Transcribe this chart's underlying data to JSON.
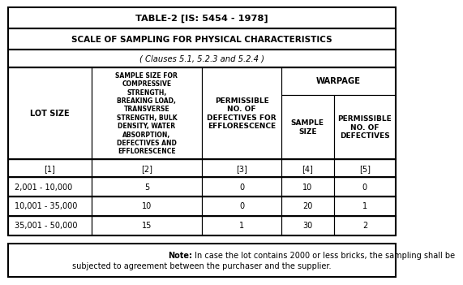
{
  "title1": "TABLE-2 [IS: 5454 - 1978]",
  "title2": "SCALE OF SAMPLING FOR PHYSICAL CHARACTERISTICS",
  "subtitle": "( Clauses 5.1, 5.2.3 and 5.2.4 )",
  "col1_header": "SAMPLE SIZE FOR\nCOMPRESSIVE\nSTRENGTH,\nBREAKING LOAD,\nTRANSVERSE\nSTRENGTH, BULK\nDENSITY, WATER\nABSORPTION,\nDEFECTIVES AND\nEFFLORESCENCE",
  "col2_header": "PERMISSIBLE\nNO. OF\nDEFECTIVES FOR\nEFFLORESCENCE",
  "warpage_label": "WARPAGE",
  "col3_header": "SAMPLE\nSIZE",
  "col4_header": "PERMISSIBLE\nNO. OF\nDEFECTIVES",
  "col0_header": "LOT SIZE",
  "row_labels": [
    "[1]",
    "[2]",
    "[3]",
    "[4]",
    "[5]"
  ],
  "data_rows": [
    [
      "2,001 - 10,000",
      "5",
      "0",
      "10",
      "0"
    ],
    [
      "10,001 - 35,000",
      "10",
      "0",
      "20",
      "1"
    ],
    [
      "35,001 - 50,000",
      "15",
      "1",
      "30",
      "2"
    ]
  ],
  "note_bold": "Note:",
  "note_line1": " In case the lot contains 2000 or less bricks, the sampling shall be",
  "note_line2": "subjected to agreement between the purchaser and the supplier.",
  "bg_color": "#ffffff",
  "border_color": "#000000"
}
